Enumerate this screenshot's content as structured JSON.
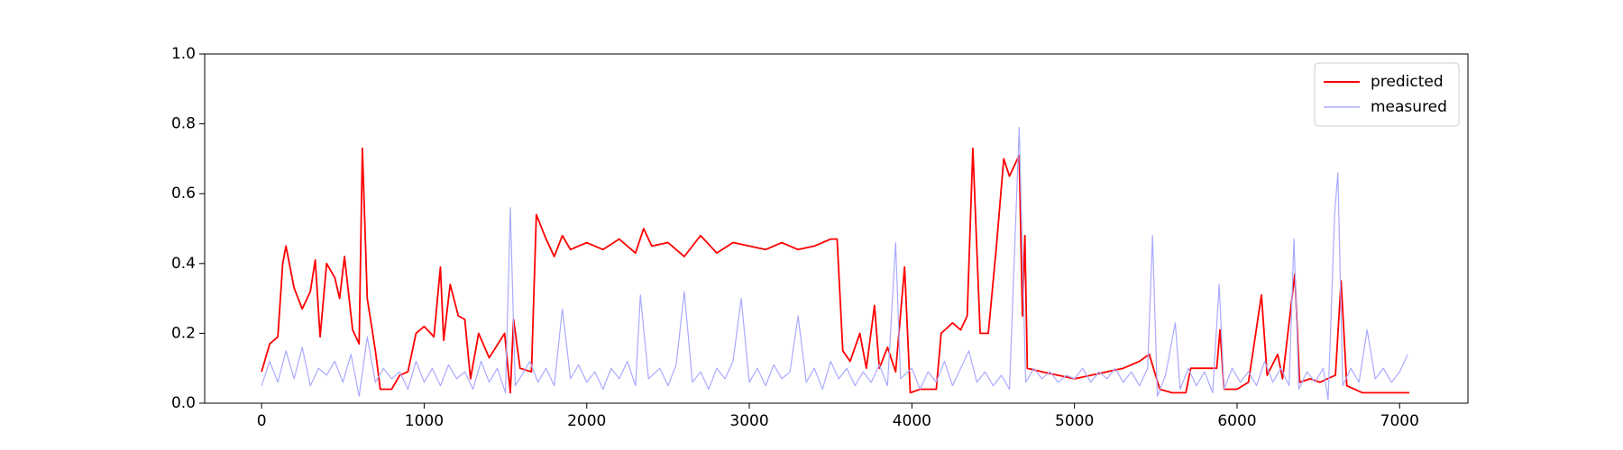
{
  "chart_data": {
    "type": "line",
    "xlim": [
      -350,
      7420
    ],
    "ylim": [
      0,
      1
    ],
    "xticks": [
      0,
      1000,
      2000,
      3000,
      4000,
      5000,
      6000,
      7000
    ],
    "yticks": [
      {
        "value": 0,
        "label": "0.0"
      },
      0.2,
      0.4,
      0.6,
      0.8,
      {
        "value": 1,
        "label": "1.0"
      }
    ],
    "legend": "upper right",
    "series": [
      {
        "name": "predicted",
        "color": "#ff0000",
        "x": [
          0,
          50,
          100,
          130,
          150,
          200,
          250,
          300,
          330,
          360,
          400,
          450,
          480,
          510,
          560,
          600,
          620,
          650,
          700,
          730,
          800,
          850,
          900,
          950,
          1000,
          1060,
          1100,
          1120,
          1160,
          1210,
          1250,
          1285,
          1335,
          1400,
          1495,
          1530,
          1550,
          1590,
          1660,
          1690,
          1750,
          1800,
          1850,
          1900,
          2000,
          2100,
          2200,
          2300,
          2350,
          2400,
          2500,
          2600,
          2700,
          2800,
          2900,
          3000,
          3100,
          3200,
          3300,
          3400,
          3500,
          3540,
          3575,
          3620,
          3680,
          3720,
          3770,
          3800,
          3850,
          3900,
          3955,
          3990,
          4050,
          4150,
          4180,
          4250,
          4300,
          4340,
          4375,
          4420,
          4470,
          4520,
          4565,
          4600,
          4660,
          4680,
          4695,
          4710,
          4800,
          4900,
          5000,
          5100,
          5200,
          5300,
          5400,
          5460,
          5525,
          5600,
          5685,
          5715,
          5800,
          5875,
          5895,
          5920,
          6000,
          6070,
          6150,
          6185,
          6250,
          6280,
          6355,
          6385,
          6450,
          6510,
          6605,
          6640,
          6675,
          6770,
          6900,
          7060
        ],
        "values": [
          0.09,
          0.17,
          0.19,
          0.4,
          0.45,
          0.33,
          0.27,
          0.32,
          0.41,
          0.19,
          0.4,
          0.36,
          0.3,
          0.42,
          0.21,
          0.17,
          0.73,
          0.3,
          0.15,
          0.04,
          0.04,
          0.08,
          0.09,
          0.2,
          0.22,
          0.19,
          0.39,
          0.18,
          0.34,
          0.25,
          0.24,
          0.07,
          0.2,
          0.13,
          0.2,
          0.03,
          0.24,
          0.1,
          0.09,
          0.54,
          0.47,
          0.42,
          0.48,
          0.44,
          0.46,
          0.44,
          0.47,
          0.43,
          0.5,
          0.45,
          0.46,
          0.42,
          0.48,
          0.43,
          0.46,
          0.45,
          0.44,
          0.46,
          0.44,
          0.45,
          0.47,
          0.47,
          0.15,
          0.12,
          0.2,
          0.1,
          0.28,
          0.1,
          0.16,
          0.09,
          0.39,
          0.03,
          0.04,
          0.04,
          0.2,
          0.23,
          0.21,
          0.25,
          0.73,
          0.2,
          0.2,
          0.45,
          0.7,
          0.65,
          0.71,
          0.25,
          0.48,
          0.1,
          0.09,
          0.08,
          0.07,
          0.08,
          0.09,
          0.1,
          0.12,
          0.14,
          0.04,
          0.03,
          0.03,
          0.1,
          0.1,
          0.1,
          0.21,
          0.04,
          0.04,
          0.06,
          0.31,
          0.08,
          0.14,
          0.07,
          0.37,
          0.06,
          0.07,
          0.06,
          0.08,
          0.35,
          0.05,
          0.03,
          0.03,
          0.03
        ]
      },
      {
        "name": "measured",
        "color": "#aaaaff",
        "x": [
          0,
          50,
          100,
          150,
          200,
          250,
          300,
          350,
          400,
          450,
          500,
          550,
          600,
          650,
          700,
          750,
          800,
          850,
          900,
          950,
          1000,
          1050,
          1100,
          1150,
          1200,
          1250,
          1300,
          1350,
          1400,
          1450,
          1500,
          1530,
          1560,
          1600,
          1650,
          1700,
          1750,
          1800,
          1850,
          1900,
          1950,
          2000,
          2050,
          2100,
          2150,
          2200,
          2250,
          2300,
          2330,
          2380,
          2450,
          2500,
          2550,
          2600,
          2650,
          2700,
          2750,
          2800,
          2850,
          2900,
          2950,
          3000,
          3050,
          3100,
          3150,
          3200,
          3250,
          3300,
          3350,
          3400,
          3450,
          3500,
          3550,
          3600,
          3650,
          3700,
          3750,
          3800,
          3850,
          3900,
          3930,
          4000,
          4050,
          4100,
          4150,
          4200,
          4250,
          4300,
          4350,
          4400,
          4450,
          4500,
          4550,
          4600,
          4660,
          4700,
          4750,
          4800,
          4850,
          4900,
          4950,
          5000,
          5050,
          5100,
          5150,
          5200,
          5250,
          5300,
          5350,
          5400,
          5450,
          5480,
          5510,
          5560,
          5620,
          5650,
          5700,
          5750,
          5800,
          5850,
          5890,
          5920,
          5970,
          6020,
          6070,
          6120,
          6170,
          6220,
          6270,
          6320,
          6350,
          6380,
          6430,
          6480,
          6530,
          6560,
          6600,
          6620,
          6650,
          6700,
          6750,
          6800,
          6850,
          6900,
          6950,
          7000,
          7050
        ],
        "values": [
          0.05,
          0.12,
          0.06,
          0.15,
          0.07,
          0.16,
          0.05,
          0.1,
          0.08,
          0.12,
          0.06,
          0.14,
          0.02,
          0.19,
          0.06,
          0.1,
          0.07,
          0.09,
          0.04,
          0.12,
          0.06,
          0.1,
          0.05,
          0.11,
          0.07,
          0.09,
          0.04,
          0.12,
          0.06,
          0.1,
          0.03,
          0.56,
          0.05,
          0.08,
          0.12,
          0.06,
          0.1,
          0.05,
          0.27,
          0.07,
          0.11,
          0.06,
          0.09,
          0.04,
          0.1,
          0.07,
          0.12,
          0.05,
          0.31,
          0.07,
          0.1,
          0.05,
          0.11,
          0.32,
          0.06,
          0.09,
          0.04,
          0.1,
          0.07,
          0.12,
          0.3,
          0.06,
          0.1,
          0.05,
          0.11,
          0.07,
          0.09,
          0.25,
          0.06,
          0.1,
          0.04,
          0.12,
          0.07,
          0.1,
          0.05,
          0.09,
          0.06,
          0.11,
          0.05,
          0.46,
          0.07,
          0.1,
          0.04,
          0.09,
          0.06,
          0.12,
          0.05,
          0.1,
          0.15,
          0.06,
          0.09,
          0.05,
          0.08,
          0.04,
          0.79,
          0.06,
          0.1,
          0.07,
          0.09,
          0.06,
          0.08,
          0.07,
          0.1,
          0.06,
          0.09,
          0.07,
          0.1,
          0.06,
          0.09,
          0.05,
          0.1,
          0.48,
          0.02,
          0.08,
          0.23,
          0.04,
          0.1,
          0.05,
          0.09,
          0.03,
          0.34,
          0.04,
          0.1,
          0.06,
          0.09,
          0.05,
          0.12,
          0.06,
          0.1,
          0.05,
          0.47,
          0.04,
          0.09,
          0.06,
          0.1,
          0.01,
          0.54,
          0.66,
          0.05,
          0.1,
          0.06,
          0.21,
          0.07,
          0.1,
          0.06,
          0.09,
          0.14
        ]
      }
    ]
  }
}
